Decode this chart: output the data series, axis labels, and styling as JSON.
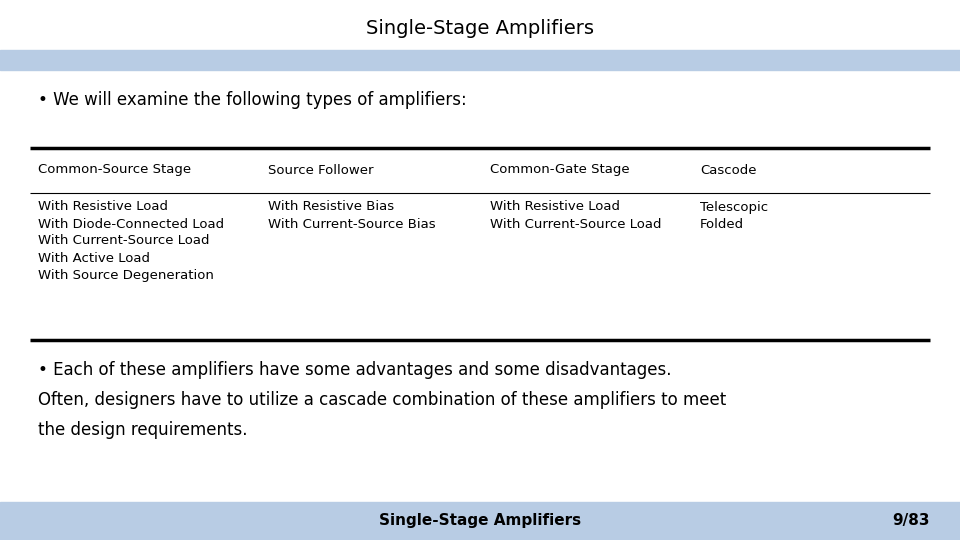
{
  "title": "Single-Stage Amplifiers",
  "bg_color": "#ffffff",
  "header_bar_color": "#b8cce4",
  "footer_bar_color": "#b8cce4",
  "title_fontsize": 14,
  "bullet1": "• We will examine the following types of amplifiers:",
  "table_headers": [
    "Common-Source Stage",
    "Source Follower",
    "Common-Gate Stage",
    "Cascode"
  ],
  "table_col1": [
    "With Resistive Load",
    "With Diode-Connected Load",
    "With Current-Source Load",
    "With Active Load",
    "With Source Degeneration"
  ],
  "table_col2": [
    "With Resistive Bias",
    "With Current-Source Bias"
  ],
  "table_col3": [
    "With Resistive Load",
    "With Current-Source Load"
  ],
  "table_col4": [
    "Telescopic",
    "Folded"
  ],
  "bullet2": "• Each of these amplifiers have some advantages and some disadvantages.",
  "para2a": "Often, designers have to utilize a cascade combination of these amplifiers to meet",
  "para2b": "the design requirements.",
  "footer_title": "Single-Stage Amplifiers",
  "footer_page": "9/83",
  "text_color": "#000000",
  "table_header_fontsize": 9.5,
  "table_body_fontsize": 9.5,
  "body_fontsize": 12,
  "footer_fontsize": 11
}
